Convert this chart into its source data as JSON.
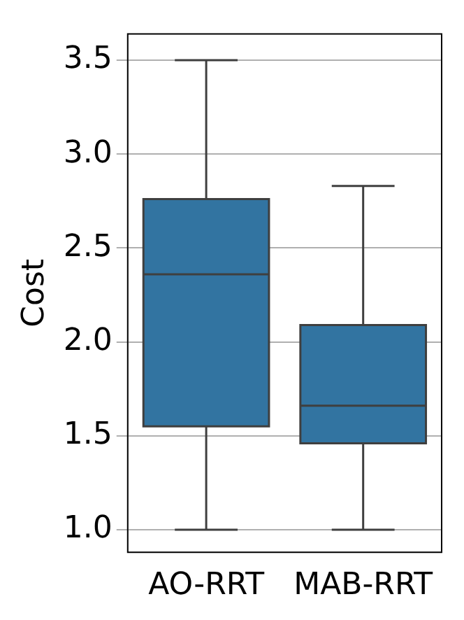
{
  "chart_data": {
    "type": "box",
    "ylabel": "Cost",
    "categories": [
      "AO-RRT",
      "MAB-RRT"
    ],
    "color": "#3274a1",
    "boxes": [
      {
        "low": 1.0,
        "q1": 1.55,
        "median": 2.36,
        "q3": 2.76,
        "high": 3.5
      },
      {
        "low": 1.0,
        "q1": 1.46,
        "median": 1.66,
        "q3": 2.09,
        "high": 2.83
      }
    ],
    "ylim": [
      0.88,
      3.64
    ],
    "yticks": [
      {
        "value": 1,
        "label": "1.0"
      },
      1.5,
      {
        "value": 2,
        "label": "2.0"
      },
      2.5,
      {
        "value": 3,
        "label": "3.0"
      },
      3.5
    ],
    "grid": "y"
  }
}
